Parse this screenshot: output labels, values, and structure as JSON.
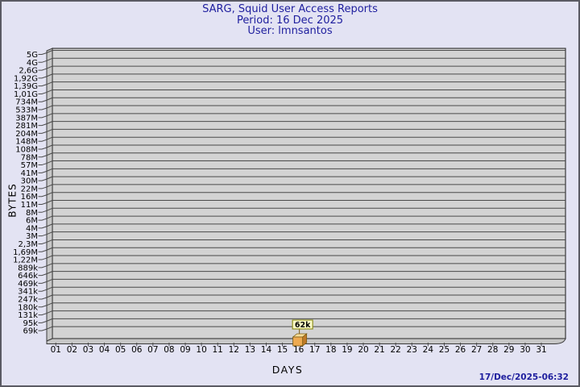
{
  "header": {
    "title": "SARG, Squid User Access Reports",
    "period": "Period: 16 Dec 2025",
    "user": "User: lmnsantos"
  },
  "footer": {
    "timestamp": "17/Dec/2025-06:32"
  },
  "chart_data": {
    "type": "bar",
    "title": "SARG, Squid User Access Reports",
    "subtitle": "Period: 16 Dec 2025",
    "user": "User: lmnsantos",
    "xlabel": "DAYS",
    "ylabel": "BYTES",
    "scale": "logarithmic",
    "grid": true,
    "x_categories": [
      "01",
      "02",
      "03",
      "04",
      "05",
      "06",
      "07",
      "08",
      "09",
      "10",
      "11",
      "12",
      "13",
      "14",
      "15",
      "16",
      "17",
      "18",
      "19",
      "20",
      "21",
      "22",
      "23",
      "24",
      "25",
      "26",
      "27",
      "28",
      "29",
      "30",
      "31"
    ],
    "y_tick_labels": [
      "5G",
      "4G",
      "2,6G",
      "1,92G",
      "1,39G",
      "1,01G",
      "734M",
      "533M",
      "387M",
      "281M",
      "204M",
      "148M",
      "108M",
      "78M",
      "57M",
      "41M",
      "30M",
      "22M",
      "16M",
      "11M",
      "8M",
      "6M",
      "4M",
      "3M",
      "2,3M",
      "1,69M",
      "1,22M",
      "889k",
      "646k",
      "469k",
      "341k",
      "247k",
      "180k",
      "131k",
      "95k",
      "69k"
    ],
    "bars": [
      {
        "day": "16",
        "value_label": "62k",
        "value_bytes": 62000
      }
    ],
    "colors": {
      "background": "#e3e3f3",
      "border": "#5a5a63",
      "title_text": "#1e1e9e",
      "grid_bg": "#d3d3d3",
      "grid_line": "#4a4a4a",
      "wall_bg": "#c7c7c7",
      "edge_line": "#3a3a3a",
      "axis_text": "#000000",
      "bar_front": "#eeaa50",
      "bar_top": "#f6dc96",
      "bar_side": "#bf7a28",
      "bar_outline": "#7a5a10",
      "callout_bg": "#ffffc8",
      "callout_border": "#8f8f20",
      "callout_text": "#000000"
    }
  }
}
